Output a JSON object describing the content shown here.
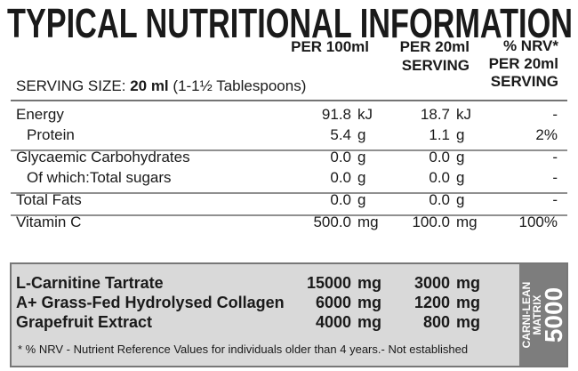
{
  "title": "TYPICAL NUTRITIONAL INFORMATION",
  "columns": {
    "per_100ml": "PER 100ml",
    "per_serving": [
      "PER 20ml",
      "SERVING"
    ],
    "nrv": [
      "% NRV*",
      "PER 20ml",
      "SERVING"
    ]
  },
  "serving_size": {
    "label": "SERVING SIZE:",
    "amount": "20 ml",
    "note": "(1-1½ Tablespoons)"
  },
  "groups": [
    [
      {
        "name": "Energy",
        "per_100ml": "91.8",
        "unit_100ml": "kJ",
        "per_serving": "18.7",
        "unit_serving": "kJ",
        "nrv": "-"
      },
      {
        "name": "Protein",
        "per_100ml": "5.4",
        "unit_100ml": "g",
        "per_serving": "1.1",
        "unit_serving": "g",
        "nrv": "2%"
      }
    ],
    [
      {
        "name": "Glycaemic Carbohydrates",
        "per_100ml": "0.0",
        "unit_100ml": "g",
        "per_serving": "0.0",
        "unit_serving": "g",
        "nrv": "-"
      },
      {
        "name": "Of which:Total sugars",
        "per_100ml": "0.0",
        "unit_100ml": "g",
        "per_serving": "0.0",
        "unit_serving": "g",
        "nrv": "-"
      }
    ],
    [
      {
        "name": "Total Fats",
        "per_100ml": "0.0",
        "unit_100ml": "g",
        "per_serving": "0.0",
        "unit_serving": "g",
        "nrv": "-"
      }
    ],
    [
      {
        "name": "Vitamin C",
        "per_100ml": "500.0",
        "unit_100ml": "mg",
        "per_serving": "100.0",
        "unit_serving": "mg",
        "nrv": "100%"
      }
    ]
  ],
  "blend": {
    "rows": [
      {
        "name": "L-Carnitine Tartrate",
        "per_100ml": "15000",
        "unit_100ml": "mg",
        "per_serving": "3000",
        "unit_serving": "mg"
      },
      {
        "name": "A+ Grass-Fed Hydrolysed Collagen",
        "per_100ml": "6000",
        "unit_100ml": "mg",
        "per_serving": "1200",
        "unit_serving": "mg"
      },
      {
        "name": "Grapefruit Extract",
        "per_100ml": "4000",
        "unit_100ml": "mg",
        "per_serving": "800",
        "unit_serving": "mg"
      }
    ],
    "footnote": "* % NRV - Nutrient Reference Values for individuals older than 4 years.- Not established"
  },
  "badge": {
    "line1": "CARNI-LEAN",
    "line2": "MATRIX",
    "number": "5000"
  }
}
